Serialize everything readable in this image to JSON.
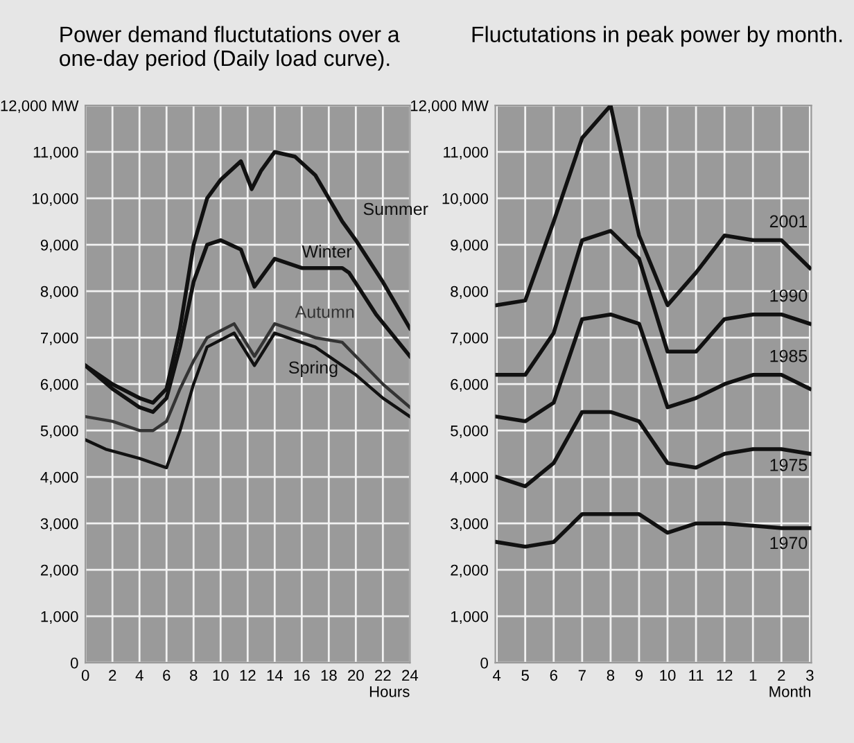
{
  "chart_data": [
    {
      "type": "line",
      "title": "Power demand fluctutations over a one-day period (Daily load curve).",
      "xlabel": "Hours",
      "grid": true,
      "legend": false,
      "marker": "none",
      "line_style": "solid",
      "xlim": [
        0,
        24
      ],
      "xticks": [
        0,
        2,
        4,
        6,
        8,
        10,
        12,
        14,
        16,
        18,
        20,
        22,
        24
      ],
      "ylim": [
        0,
        12000
      ],
      "yticks": [
        0,
        {
          "value": 1000,
          "label": "1,000"
        },
        {
          "value": 2000,
          "label": "2,000"
        },
        {
          "value": 3000,
          "label": "3,000"
        },
        {
          "value": 4000,
          "label": "4,000"
        },
        {
          "value": 5000,
          "label": "5,000"
        },
        {
          "value": 6000,
          "label": "6,000"
        },
        {
          "value": 7000,
          "label": "7,000"
        },
        {
          "value": 8000,
          "label": "8,000"
        },
        {
          "value": 9000,
          "label": "9,000"
        },
        {
          "value": 10000,
          "label": "10,000"
        },
        {
          "value": 11000,
          "label": "11,000"
        },
        {
          "value": 12000,
          "label": "12,000 MW"
        }
      ],
      "series": [
        {
          "name": "Summer",
          "color": "#111111",
          "x": [
            0,
            2,
            4,
            5,
            6,
            7,
            8,
            9,
            10,
            11.5,
            12.3,
            13,
            14,
            15.5,
            17,
            19,
            20,
            22,
            24
          ],
          "values": [
            6400,
            6000,
            5700,
            5600,
            5900,
            7200,
            9000,
            10000,
            10400,
            10800,
            10200,
            10600,
            11000,
            10900,
            10500,
            9500,
            9100,
            8200,
            7200
          ]
        },
        {
          "name": "Winter",
          "color": "#111111",
          "x": [
            0,
            2,
            4,
            5,
            6,
            7,
            8,
            9,
            10,
            11.5,
            12.5,
            14,
            16,
            19,
            19.5,
            21.5,
            24
          ],
          "values": [
            6400,
            5900,
            5500,
            5400,
            5700,
            6800,
            8200,
            9000,
            9100,
            8900,
            8100,
            8700,
            8500,
            8500,
            8400,
            7500,
            6600
          ]
        },
        {
          "name": "Autumn",
          "color": "#333333",
          "x": [
            0,
            2,
            4,
            5,
            6,
            7,
            8,
            9,
            11,
            12.5,
            14,
            17,
            19,
            22,
            24
          ],
          "values": [
            5300,
            5200,
            5000,
            5000,
            5200,
            5900,
            6500,
            7000,
            7300,
            6600,
            7300,
            7000,
            6900,
            6000,
            5500
          ]
        },
        {
          "name": "Spring",
          "color": "#111111",
          "x": [
            0,
            1.5,
            4,
            6,
            7,
            8,
            9,
            11,
            12.5,
            14,
            17,
            19.5,
            20,
            22,
            24
          ],
          "values": [
            4800,
            4600,
            4400,
            4200,
            5000,
            6000,
            6800,
            7100,
            6400,
            7100,
            6800,
            6300,
            6200,
            5700,
            5300
          ]
        }
      ]
    },
    {
      "type": "line",
      "title": "Fluctutations in peak power by month.",
      "xlabel": "Month",
      "grid": true,
      "legend": false,
      "marker": "none",
      "line_style": "solid",
      "categories": [
        "4",
        "5",
        "6",
        "7",
        "8",
        "9",
        "10",
        "11",
        "12",
        "1",
        "2",
        "3"
      ],
      "ylim": [
        0,
        12000
      ],
      "yticks": [
        0,
        {
          "value": 1000,
          "label": "1,000"
        },
        {
          "value": 2000,
          "label": "2,000"
        },
        {
          "value": 3000,
          "label": "3,000"
        },
        {
          "value": 4000,
          "label": "4,000"
        },
        {
          "value": 5000,
          "label": "5,000"
        },
        {
          "value": 6000,
          "label": "6,000"
        },
        {
          "value": 7000,
          "label": "7,000"
        },
        {
          "value": 8000,
          "label": "8,000"
        },
        {
          "value": 9000,
          "label": "9,000"
        },
        {
          "value": 10000,
          "label": "10,000"
        },
        {
          "value": 11000,
          "label": "11,000"
        },
        {
          "value": 12000,
          "label": "12,000 MW"
        }
      ],
      "series": [
        {
          "name": "2001",
          "color": "#111111",
          "values": [
            7700,
            7800,
            9500,
            11300,
            12000,
            9200,
            7700,
            8400,
            9200,
            9100,
            9100,
            8500
          ]
        },
        {
          "name": "1990",
          "color": "#111111",
          "values": [
            6200,
            6200,
            7100,
            9100,
            9300,
            8700,
            6700,
            6700,
            7400,
            7500,
            7500,
            7300
          ]
        },
        {
          "name": "1985",
          "color": "#111111",
          "values": [
            5300,
            5200,
            5600,
            7400,
            7500,
            7300,
            5500,
            5700,
            6000,
            6200,
            6200,
            5900
          ]
        },
        {
          "name": "1975",
          "color": "#111111",
          "values": [
            4000,
            3800,
            4300,
            5400,
            5400,
            5200,
            4300,
            4200,
            4500,
            4600,
            4600,
            4500
          ]
        },
        {
          "name": "1970",
          "color": "#111111",
          "values": [
            2600,
            2500,
            2600,
            3200,
            3200,
            3200,
            2800,
            3000,
            3000,
            2950,
            2900,
            2900
          ]
        }
      ]
    }
  ]
}
